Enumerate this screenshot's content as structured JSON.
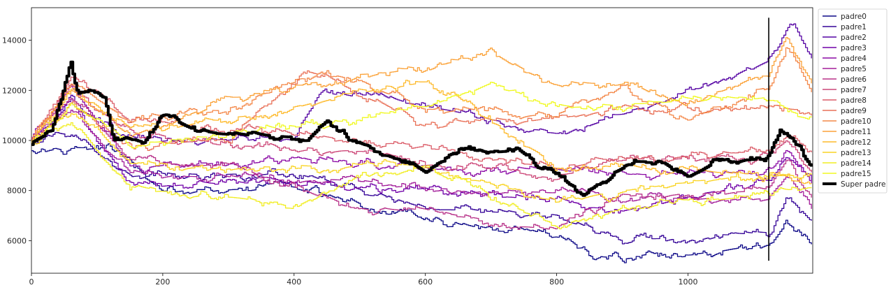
{
  "chart_data": {
    "type": "line",
    "title": "",
    "xlabel": "",
    "ylabel": "",
    "xlim": [
      0,
      1190
    ],
    "ylim": [
      4700,
      15300
    ],
    "xticks": [
      0,
      200,
      400,
      600,
      800,
      1000
    ],
    "yticks": [
      6000,
      8000,
      10000,
      12000,
      14000
    ],
    "grid": false,
    "legend_position": "outside-right-top",
    "vertical_marker": {
      "x": 1123,
      "y_range": [
        5200,
        14900
      ],
      "color": "#000000"
    },
    "series": [
      {
        "name": "padre0",
        "color": "#0d0887",
        "start": 9700,
        "end": 5900,
        "keypoints": [
          [
            0,
            9700
          ],
          [
            120,
            9700
          ],
          [
            200,
            8000
          ],
          [
            400,
            8100
          ],
          [
            600,
            6700
          ],
          [
            800,
            6200
          ],
          [
            860,
            5300
          ],
          [
            1000,
            5400
          ],
          [
            1123,
            5900
          ],
          [
            1150,
            6700
          ],
          [
            1190,
            5900
          ]
        ]
      },
      {
        "name": "padre1",
        "color": "#350498",
        "start": 9800,
        "end": 6700,
        "keypoints": [
          [
            0,
            9800
          ],
          [
            60,
            10200
          ],
          [
            150,
            8600
          ],
          [
            400,
            8700
          ],
          [
            600,
            7300
          ],
          [
            800,
            7000
          ],
          [
            900,
            6000
          ],
          [
            1123,
            6300
          ],
          [
            1150,
            7800
          ],
          [
            1190,
            6700
          ]
        ]
      },
      {
        "name": "padre2",
        "color": "#5402a3",
        "start": 10000,
        "end": 13100,
        "keypoints": [
          [
            0,
            10000
          ],
          [
            60,
            11500
          ],
          [
            150,
            10000
          ],
          [
            400,
            10100
          ],
          [
            440,
            11900
          ],
          [
            600,
            11400
          ],
          [
            800,
            10300
          ],
          [
            900,
            11000
          ],
          [
            1123,
            13200
          ],
          [
            1160,
            14700
          ],
          [
            1190,
            13100
          ]
        ]
      },
      {
        "name": "padre3",
        "color": "#7000a8",
        "start": 9900,
        "end": 8400,
        "keypoints": [
          [
            0,
            9900
          ],
          [
            60,
            11700
          ],
          [
            150,
            8200
          ],
          [
            400,
            8300
          ],
          [
            600,
            8000
          ],
          [
            800,
            7600
          ],
          [
            900,
            7200
          ],
          [
            1123,
            8400
          ],
          [
            1150,
            9300
          ],
          [
            1190,
            8400
          ]
        ]
      },
      {
        "name": "padre4",
        "color": "#8b0aa5",
        "start": 10100,
        "end": 8200,
        "keypoints": [
          [
            0,
            10100
          ],
          [
            60,
            12100
          ],
          [
            150,
            9000
          ],
          [
            400,
            9200
          ],
          [
            600,
            9000
          ],
          [
            800,
            8800
          ],
          [
            900,
            8600
          ],
          [
            1123,
            8700
          ],
          [
            1150,
            9600
          ],
          [
            1190,
            8200
          ]
        ]
      },
      {
        "name": "padre5",
        "color": "#a31e9a",
        "start": 9900,
        "end": 7300,
        "keypoints": [
          [
            0,
            9900
          ],
          [
            60,
            11300
          ],
          [
            150,
            8700
          ],
          [
            300,
            8500
          ],
          [
            500,
            8400
          ],
          [
            600,
            8100
          ],
          [
            800,
            7900
          ],
          [
            900,
            7700
          ],
          [
            1123,
            7700
          ],
          [
            1150,
            8600
          ],
          [
            1190,
            7300
          ]
        ]
      },
      {
        "name": "padre6",
        "color": "#b83289",
        "start": 10000,
        "end": 7600,
        "keypoints": [
          [
            0,
            10000
          ],
          [
            60,
            11800
          ],
          [
            150,
            9200
          ],
          [
            300,
            9000
          ],
          [
            500,
            7200
          ],
          [
            600,
            7200
          ],
          [
            800,
            6400
          ],
          [
            900,
            7800
          ],
          [
            1123,
            8000
          ],
          [
            1150,
            9200
          ],
          [
            1190,
            7600
          ]
        ]
      },
      {
        "name": "padre7",
        "color": "#cc4778",
        "start": 10050,
        "end": 8700,
        "keypoints": [
          [
            0,
            10050
          ],
          [
            60,
            12300
          ],
          [
            150,
            10300
          ],
          [
            300,
            9800
          ],
          [
            500,
            9600
          ],
          [
            600,
            9100
          ],
          [
            800,
            8500
          ],
          [
            900,
            9200
          ],
          [
            1123,
            9400
          ],
          [
            1150,
            10000
          ],
          [
            1190,
            8700
          ]
        ]
      },
      {
        "name": "padre8",
        "color": "#db5c68",
        "start": 10000,
        "end": 9500,
        "keypoints": [
          [
            0,
            10000
          ],
          [
            60,
            12600
          ],
          [
            150,
            10800
          ],
          [
            300,
            10400
          ],
          [
            500,
            10000
          ],
          [
            600,
            9800
          ],
          [
            800,
            8900
          ],
          [
            900,
            9300
          ],
          [
            1123,
            9500
          ],
          [
            1150,
            10200
          ],
          [
            1190,
            9500
          ]
        ]
      },
      {
        "name": "padre9",
        "color": "#e97158",
        "start": 9900,
        "end": 11200,
        "keypoints": [
          [
            0,
            9900
          ],
          [
            60,
            11400
          ],
          [
            150,
            9700
          ],
          [
            300,
            10000
          ],
          [
            420,
            12900
          ],
          [
            600,
            10600
          ],
          [
            800,
            10900
          ],
          [
            900,
            11300
          ],
          [
            1123,
            11200
          ],
          [
            1190,
            11200
          ]
        ]
      },
      {
        "name": "padre10",
        "color": "#f48849",
        "start": 10100,
        "end": 11800,
        "keypoints": [
          [
            0,
            10100
          ],
          [
            60,
            12300
          ],
          [
            150,
            10800
          ],
          [
            300,
            11200
          ],
          [
            450,
            12800
          ],
          [
            600,
            11300
          ],
          [
            800,
            11000
          ],
          [
            900,
            12200
          ],
          [
            1000,
            10800
          ],
          [
            1123,
            12100
          ],
          [
            1150,
            13800
          ],
          [
            1190,
            11800
          ]
        ]
      },
      {
        "name": "padre11",
        "color": "#fba238",
        "start": 10000,
        "end": 12300,
        "keypoints": [
          [
            0,
            10000
          ],
          [
            60,
            12100
          ],
          [
            150,
            10200
          ],
          [
            300,
            11600
          ],
          [
            500,
            12600
          ],
          [
            600,
            12900
          ],
          [
            700,
            13400
          ],
          [
            800,
            12200
          ],
          [
            900,
            12300
          ],
          [
            1000,
            11300
          ],
          [
            1123,
            12800
          ],
          [
            1150,
            14200
          ],
          [
            1190,
            12300
          ]
        ]
      },
      {
        "name": "padre12",
        "color": "#feba2c",
        "start": 10000,
        "end": 8300,
        "keypoints": [
          [
            0,
            10000
          ],
          [
            60,
            12000
          ],
          [
            150,
            10500
          ],
          [
            300,
            10800
          ],
          [
            500,
            11900
          ],
          [
            600,
            12300
          ],
          [
            700,
            10900
          ],
          [
            800,
            9000
          ],
          [
            900,
            8900
          ],
          [
            1123,
            8600
          ],
          [
            1190,
            8300
          ]
        ]
      },
      {
        "name": "padre13",
        "color": "#f9d424",
        "start": 9900,
        "end": 8500,
        "keypoints": [
          [
            0,
            9900
          ],
          [
            60,
            11200
          ],
          [
            150,
            9100
          ],
          [
            300,
            8900
          ],
          [
            500,
            9000
          ],
          [
            600,
            9000
          ],
          [
            800,
            7600
          ],
          [
            900,
            8000
          ],
          [
            1123,
            8700
          ],
          [
            1190,
            8500
          ]
        ]
      },
      {
        "name": "padre14",
        "color": "#f1ed22",
        "start": 9800,
        "end": 8100,
        "keypoints": [
          [
            0,
            9800
          ],
          [
            60,
            10800
          ],
          [
            150,
            8100
          ],
          [
            300,
            7800
          ],
          [
            400,
            7300
          ],
          [
            500,
            8700
          ],
          [
            600,
            8900
          ],
          [
            800,
            6600
          ],
          [
            900,
            7400
          ],
          [
            1123,
            7800
          ],
          [
            1190,
            8100
          ]
        ]
      },
      {
        "name": "padre15",
        "color": "#f0f921",
        "start": 10000,
        "end": 10800,
        "keypoints": [
          [
            0,
            10000
          ],
          [
            60,
            11500
          ],
          [
            150,
            9800
          ],
          [
            300,
            10200
          ],
          [
            500,
            10800
          ],
          [
            600,
            11300
          ],
          [
            700,
            12300
          ],
          [
            800,
            11300
          ],
          [
            900,
            11400
          ],
          [
            1000,
            11600
          ],
          [
            1123,
            11700
          ],
          [
            1190,
            10800
          ]
        ]
      },
      {
        "name": "Super padre",
        "color": "#000000",
        "start": 9900,
        "end": 8800,
        "keypoints": [
          [
            0,
            9900
          ],
          [
            30,
            10300
          ],
          [
            60,
            13000
          ],
          [
            70,
            11800
          ],
          [
            110,
            11900
          ],
          [
            125,
            10100
          ],
          [
            170,
            9900
          ],
          [
            200,
            10900
          ],
          [
            260,
            10300
          ],
          [
            330,
            10200
          ],
          [
            420,
            10100
          ],
          [
            450,
            10800
          ],
          [
            500,
            9900
          ],
          [
            560,
            9300
          ],
          [
            600,
            8700
          ],
          [
            660,
            9700
          ],
          [
            700,
            9500
          ],
          [
            740,
            9600
          ],
          [
            800,
            8600
          ],
          [
            840,
            7800
          ],
          [
            880,
            8500
          ],
          [
            920,
            9200
          ],
          [
            960,
            9100
          ],
          [
            1000,
            8500
          ],
          [
            1050,
            9300
          ],
          [
            1123,
            9300
          ],
          [
            1140,
            10500
          ],
          [
            1160,
            9900
          ],
          [
            1190,
            8800
          ]
        ]
      }
    ]
  }
}
